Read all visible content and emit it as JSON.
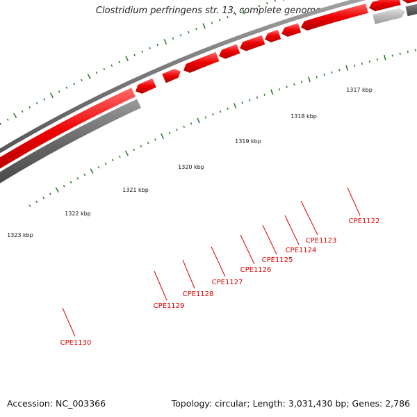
{
  "title": "Clostridium perfringens str. 13, complete genome",
  "footer": {
    "accession": "Accession: NC_003366",
    "summary": "Topology: circular; Length: 3,031,430 bp; Genes: 2,786"
  },
  "colors": {
    "backbone": "#7a7a7a",
    "gene_forward": "#ee0000",
    "gene_reverse": "#666666",
    "gene_reverse_faded": "#bbbbbb",
    "tick": "#2e7d2e",
    "label": "#dd0000"
  },
  "scale_labels": [
    "1317 kbp",
    "1318 kbp",
    "1319 kbp",
    "1320 kbp",
    "1321 kbp",
    "1322 kbp",
    "1323 kbp"
  ],
  "gene_labels": [
    "CPE1122",
    "CPE1123",
    "CPE1124",
    "CPE1125",
    "CPE1126",
    "CPE1127",
    "CPE1128",
    "CPE1129",
    "CPE1130"
  ]
}
